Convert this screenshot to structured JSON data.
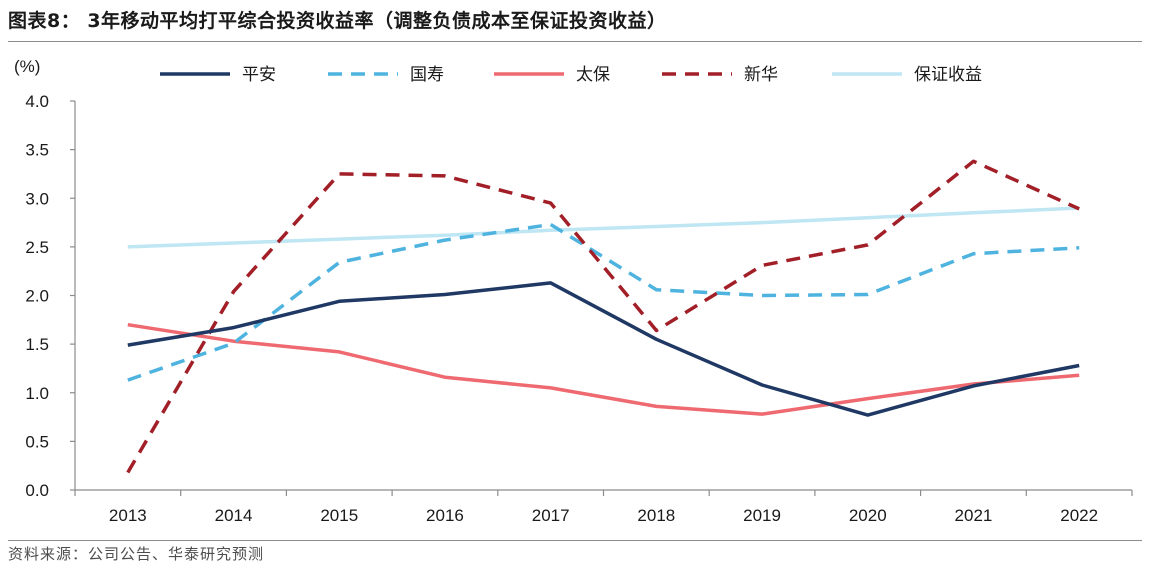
{
  "header": {
    "title": "图表8：  3年移动平均打平综合投资收益率（调整负债成本至保证投资收益）"
  },
  "footer": {
    "source": "资料来源：公司公告、华泰研究预测"
  },
  "chart_data": {
    "type": "line",
    "title": "图表8：  3年移动平均打平综合投资收益率（调整负债成本至保证投资收益）",
    "ylabel": "(%)",
    "xlabel": "",
    "categories": [
      "2013",
      "2014",
      "2015",
      "2016",
      "2017",
      "2018",
      "2019",
      "2020",
      "2021",
      "2022"
    ],
    "ylim": [
      0,
      4
    ],
    "yticks": [
      "0.0",
      "0.5",
      "1.0",
      "1.5",
      "2.0",
      "2.5",
      "3.0",
      "3.5",
      "4.0"
    ],
    "grid": false,
    "legend_position": "top",
    "series": [
      {
        "name": "平安",
        "color": "#1f3864",
        "dash": "solid",
        "values": [
          1.49,
          1.67,
          1.94,
          2.01,
          2.13,
          1.55,
          1.08,
          0.77,
          1.07,
          1.28
        ]
      },
      {
        "name": "国寿",
        "color": "#4fb3e0",
        "dash": "dashed",
        "values": [
          1.13,
          1.51,
          2.34,
          2.57,
          2.73,
          2.06,
          2.0,
          2.01,
          2.43,
          2.49
        ]
      },
      {
        "name": "太保",
        "color": "#ee6a70",
        "dash": "solid",
        "values": [
          1.7,
          1.53,
          1.42,
          1.16,
          1.05,
          0.86,
          0.78,
          0.94,
          1.09,
          1.18
        ]
      },
      {
        "name": "新华",
        "color": "#a21f28",
        "dash": "dashed",
        "values": [
          0.18,
          2.04,
          3.25,
          3.23,
          2.95,
          1.64,
          2.31,
          2.52,
          3.38,
          2.89
        ]
      },
      {
        "name": "保证收益",
        "color": "#bfe6f3",
        "dash": "solid",
        "values": [
          2.5,
          2.54,
          2.58,
          2.62,
          2.67,
          2.71,
          2.75,
          2.8,
          2.85,
          2.9
        ]
      }
    ]
  }
}
